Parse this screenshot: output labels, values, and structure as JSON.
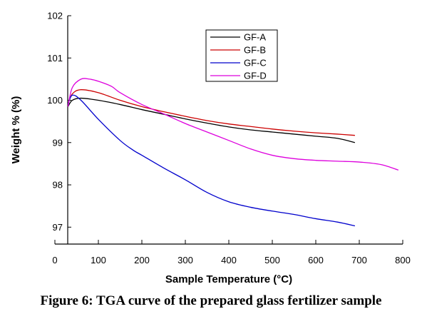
{
  "caption": "Figure 6: TGA curve of the prepared glass fertilizer sample",
  "chart_data": {
    "type": "line",
    "title": "",
    "xlabel": "Sample Temperature (°C)",
    "ylabel": "Weight % (%)",
    "xlim": [
      0,
      800
    ],
    "ylim": [
      96.6,
      102
    ],
    "x_ticks": [
      0,
      100,
      200,
      300,
      400,
      500,
      600,
      700,
      800
    ],
    "y_ticks": [
      97,
      98,
      99,
      100,
      101,
      102
    ],
    "grid": false,
    "legend_position": "top-center",
    "series": [
      {
        "name": "GF-A",
        "color": "#000000",
        "x": [
          30,
          40,
          60,
          100,
          150,
          200,
          250,
          300,
          350,
          400,
          450,
          500,
          550,
          600,
          650,
          690
        ],
        "y": [
          99.85,
          100.0,
          100.05,
          100.0,
          99.9,
          99.78,
          99.67,
          99.56,
          99.46,
          99.37,
          99.3,
          99.25,
          99.2,
          99.15,
          99.1,
          99.0
        ]
      },
      {
        "name": "GF-B",
        "color": "#cc0000",
        "x": [
          30,
          40,
          60,
          100,
          150,
          200,
          250,
          300,
          350,
          400,
          450,
          500,
          550,
          600,
          650,
          690
        ],
        "y": [
          99.9,
          100.15,
          100.25,
          100.18,
          100.0,
          99.85,
          99.73,
          99.62,
          99.52,
          99.44,
          99.38,
          99.32,
          99.27,
          99.23,
          99.2,
          99.17
        ]
      },
      {
        "name": "GF-C",
        "color": "#0000cc",
        "x": [
          30,
          40,
          60,
          100,
          150,
          180,
          200,
          250,
          300,
          350,
          400,
          450,
          500,
          550,
          600,
          650,
          690
        ],
        "y": [
          99.9,
          100.12,
          100.0,
          99.55,
          99.05,
          98.82,
          98.7,
          98.4,
          98.12,
          97.82,
          97.6,
          97.47,
          97.38,
          97.3,
          97.2,
          97.12,
          97.03
        ]
      },
      {
        "name": "GF-D",
        "color": "#dd00dd",
        "x": [
          30,
          40,
          60,
          80,
          100,
          130,
          150,
          200,
          250,
          300,
          350,
          400,
          450,
          500,
          550,
          600,
          650,
          700,
          750,
          790
        ],
        "y": [
          99.85,
          100.3,
          100.5,
          100.5,
          100.45,
          100.33,
          100.18,
          99.9,
          99.68,
          99.45,
          99.25,
          99.05,
          98.85,
          98.7,
          98.62,
          98.58,
          98.56,
          98.54,
          98.48,
          98.35
        ]
      }
    ]
  }
}
